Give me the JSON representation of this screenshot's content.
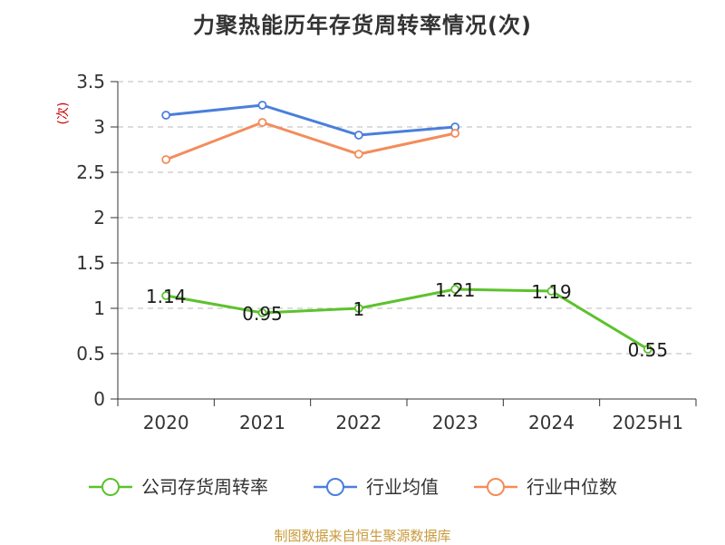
{
  "page": {
    "title": "力聚热能历年存货周转率情况(次)",
    "source": "制图数据来自恒生聚源数据库"
  },
  "chart_data": {
    "type": "line",
    "title": "力聚热能历年存货周转率情况(次)",
    "xlabel": "",
    "ylabel": "(次)",
    "categories": [
      "2020",
      "2021",
      "2022",
      "2023",
      "2024",
      "2025H1"
    ],
    "yticks": [
      "0",
      "0.5",
      "1",
      "1.5",
      "2",
      "2.5",
      "3",
      "3.5"
    ],
    "ylim": [
      0,
      3.5
    ],
    "grid": true,
    "legend_position": "bottom",
    "series": [
      {
        "name": "公司存货周转率",
        "color": "#5cc22d",
        "values": [
          1.14,
          0.95,
          1.0,
          1.21,
          1.19,
          0.55
        ],
        "labels": [
          "1.14",
          "0.95",
          "1",
          "1.21",
          "1.19",
          "0.55"
        ]
      },
      {
        "name": "行业均值",
        "color": "#4a7fdb",
        "values": [
          3.13,
          3.24,
          2.91,
          3.0,
          null,
          null
        ]
      },
      {
        "name": "行业中位数",
        "color": "#f48c5a",
        "values": [
          2.64,
          3.05,
          2.7,
          2.93,
          null,
          null
        ]
      }
    ]
  }
}
